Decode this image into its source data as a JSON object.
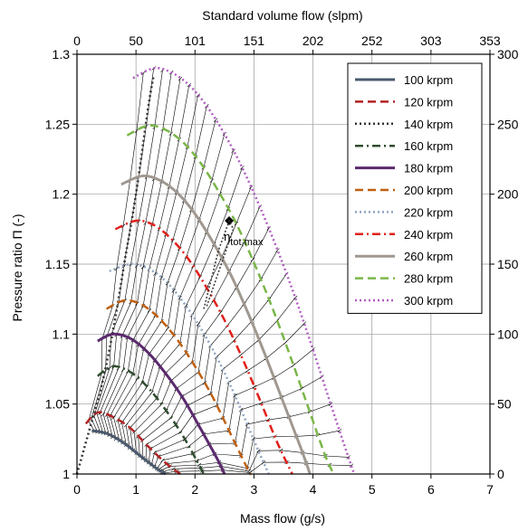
{
  "chart_data": {
    "type": "line",
    "xlabel": "Mass flow (g/s)",
    "ylabel": "Pressure ratio Π (-)",
    "x2label": "Standard volume flow (slpm)",
    "xlim": [
      0,
      7
    ],
    "ylim": [
      1,
      1.3
    ],
    "y2lim": [
      0,
      300
    ],
    "xticks": [
      "0",
      "1",
      "2",
      "3",
      "4",
      "5",
      "6",
      "7"
    ],
    "yticks": [
      "1",
      "1.05",
      "1.1",
      "1.15",
      "1.2",
      "1.25",
      "1.3"
    ],
    "x2ticks": [
      "0",
      "50",
      "101",
      "151",
      "202",
      "252",
      "303",
      "353"
    ],
    "y2ticks": [
      "0",
      "50",
      "100",
      "150",
      "200",
      "250",
      "300"
    ],
    "grid": true,
    "legend_position": "top-right",
    "annotation": {
      "label": "η",
      "subscript": "tot,max",
      "x": 2.58,
      "y": 1.181
    },
    "series": [
      {
        "name": "100 krpm",
        "color": "#4a5a6e",
        "dash": "solid",
        "width": 3,
        "points": [
          [
            0.25,
            1.031
          ],
          [
            0.5,
            1.029
          ],
          [
            0.8,
            1.022
          ],
          [
            1.1,
            1.012
          ],
          [
            1.35,
            1.004
          ],
          [
            1.5,
            1.0
          ]
        ]
      },
      {
        "name": "120 krpm",
        "color": "#b22222",
        "dash": "dash",
        "width": 2.5,
        "points": [
          [
            0.15,
            1.036
          ],
          [
            0.35,
            1.044
          ],
          [
            0.6,
            1.041
          ],
          [
            0.9,
            1.033
          ],
          [
            1.2,
            1.02
          ],
          [
            1.5,
            1.008
          ],
          [
            1.75,
            1.0
          ]
        ]
      },
      {
        "name": "140 krpm",
        "color": "#333333",
        "dash": "dot",
        "width": 2.5,
        "points": [
          [
            0.0,
            1.0
          ],
          [
            0.2,
            1.03
          ],
          [
            0.4,
            1.06
          ],
          [
            0.6,
            1.1
          ],
          [
            0.8,
            1.15
          ],
          [
            1.0,
            1.2
          ],
          [
            1.2,
            1.26
          ],
          [
            1.3,
            1.285
          ]
        ]
      },
      {
        "name": "160 krpm",
        "color": "#2e4d2e",
        "dash": "dashdot",
        "width": 2.5,
        "points": [
          [
            0.35,
            1.07
          ],
          [
            0.6,
            1.077
          ],
          [
            0.9,
            1.073
          ],
          [
            1.2,
            1.062
          ],
          [
            1.5,
            1.046
          ],
          [
            1.8,
            1.027
          ],
          [
            2.05,
            1.008
          ],
          [
            2.15,
            1.0
          ]
        ]
      },
      {
        "name": "180 krpm",
        "color": "#5b2a6e",
        "dash": "solid",
        "width": 3,
        "points": [
          [
            0.35,
            1.095
          ],
          [
            0.6,
            1.1
          ],
          [
            0.9,
            1.097
          ],
          [
            1.2,
            1.087
          ],
          [
            1.5,
            1.072
          ],
          [
            1.8,
            1.054
          ],
          [
            2.1,
            1.032
          ],
          [
            2.4,
            1.009
          ],
          [
            2.5,
            1.0
          ]
        ]
      },
      {
        "name": "200 krpm",
        "color": "#c06010",
        "dash": "dash",
        "width": 2.5,
        "points": [
          [
            0.5,
            1.118
          ],
          [
            0.8,
            1.124
          ],
          [
            1.1,
            1.121
          ],
          [
            1.4,
            1.111
          ],
          [
            1.7,
            1.096
          ],
          [
            2.0,
            1.077
          ],
          [
            2.3,
            1.055
          ],
          [
            2.6,
            1.029
          ],
          [
            2.9,
            1.003
          ],
          [
            2.95,
            1.0
          ]
        ]
      },
      {
        "name": "220 krpm",
        "color": "#8fa3c0",
        "dash": "dot",
        "width": 2.5,
        "points": [
          [
            0.55,
            1.145
          ],
          [
            0.9,
            1.15
          ],
          [
            1.2,
            1.147
          ],
          [
            1.5,
            1.138
          ],
          [
            1.8,
            1.123
          ],
          [
            2.1,
            1.104
          ],
          [
            2.4,
            1.081
          ],
          [
            2.7,
            1.054
          ],
          [
            3.0,
            1.024
          ],
          [
            3.25,
            1.0
          ]
        ]
      },
      {
        "name": "240 krpm",
        "color": "#e0201a",
        "dash": "dashdot",
        "width": 2.5,
        "points": [
          [
            0.65,
            1.175
          ],
          [
            1.0,
            1.181
          ],
          [
            1.3,
            1.178
          ],
          [
            1.6,
            1.168
          ],
          [
            1.9,
            1.153
          ],
          [
            2.2,
            1.133
          ],
          [
            2.5,
            1.11
          ],
          [
            2.8,
            1.083
          ],
          [
            3.1,
            1.053
          ],
          [
            3.4,
            1.022
          ],
          [
            3.65,
            1.0
          ]
        ]
      },
      {
        "name": "260 krpm",
        "color": "#a09890",
        "dash": "solid",
        "width": 3,
        "points": [
          [
            0.75,
            1.207
          ],
          [
            1.1,
            1.213
          ],
          [
            1.4,
            1.21
          ],
          [
            1.7,
            1.201
          ],
          [
            2.0,
            1.186
          ],
          [
            2.3,
            1.166
          ],
          [
            2.6,
            1.143
          ],
          [
            2.9,
            1.115
          ],
          [
            3.2,
            1.084
          ],
          [
            3.5,
            1.051
          ],
          [
            3.8,
            1.018
          ],
          [
            3.95,
            1.0
          ]
        ]
      },
      {
        "name": "280 krpm",
        "color": "#7ab648",
        "dash": "dash",
        "width": 2.5,
        "points": [
          [
            0.85,
            1.242
          ],
          [
            1.2,
            1.249
          ],
          [
            1.5,
            1.246
          ],
          [
            1.8,
            1.237
          ],
          [
            2.1,
            1.222
          ],
          [
            2.4,
            1.202
          ],
          [
            2.7,
            1.179
          ],
          [
            3.0,
            1.151
          ],
          [
            3.3,
            1.12
          ],
          [
            3.6,
            1.086
          ],
          [
            3.9,
            1.05
          ],
          [
            4.2,
            1.014
          ],
          [
            4.35,
            1.0
          ]
        ]
      },
      {
        "name": "300 krpm",
        "color": "#b05cc0",
        "dash": "dot",
        "width": 2.5,
        "points": [
          [
            0.95,
            1.283
          ],
          [
            1.3,
            1.29
          ],
          [
            1.6,
            1.287
          ],
          [
            1.9,
            1.278
          ],
          [
            2.2,
            1.263
          ],
          [
            2.5,
            1.243
          ],
          [
            2.8,
            1.219
          ],
          [
            3.1,
            1.191
          ],
          [
            3.4,
            1.16
          ],
          [
            3.7,
            1.126
          ],
          [
            4.0,
            1.089
          ],
          [
            4.3,
            1.05
          ],
          [
            4.6,
            1.012
          ],
          [
            4.7,
            1.0
          ]
        ]
      }
    ]
  }
}
